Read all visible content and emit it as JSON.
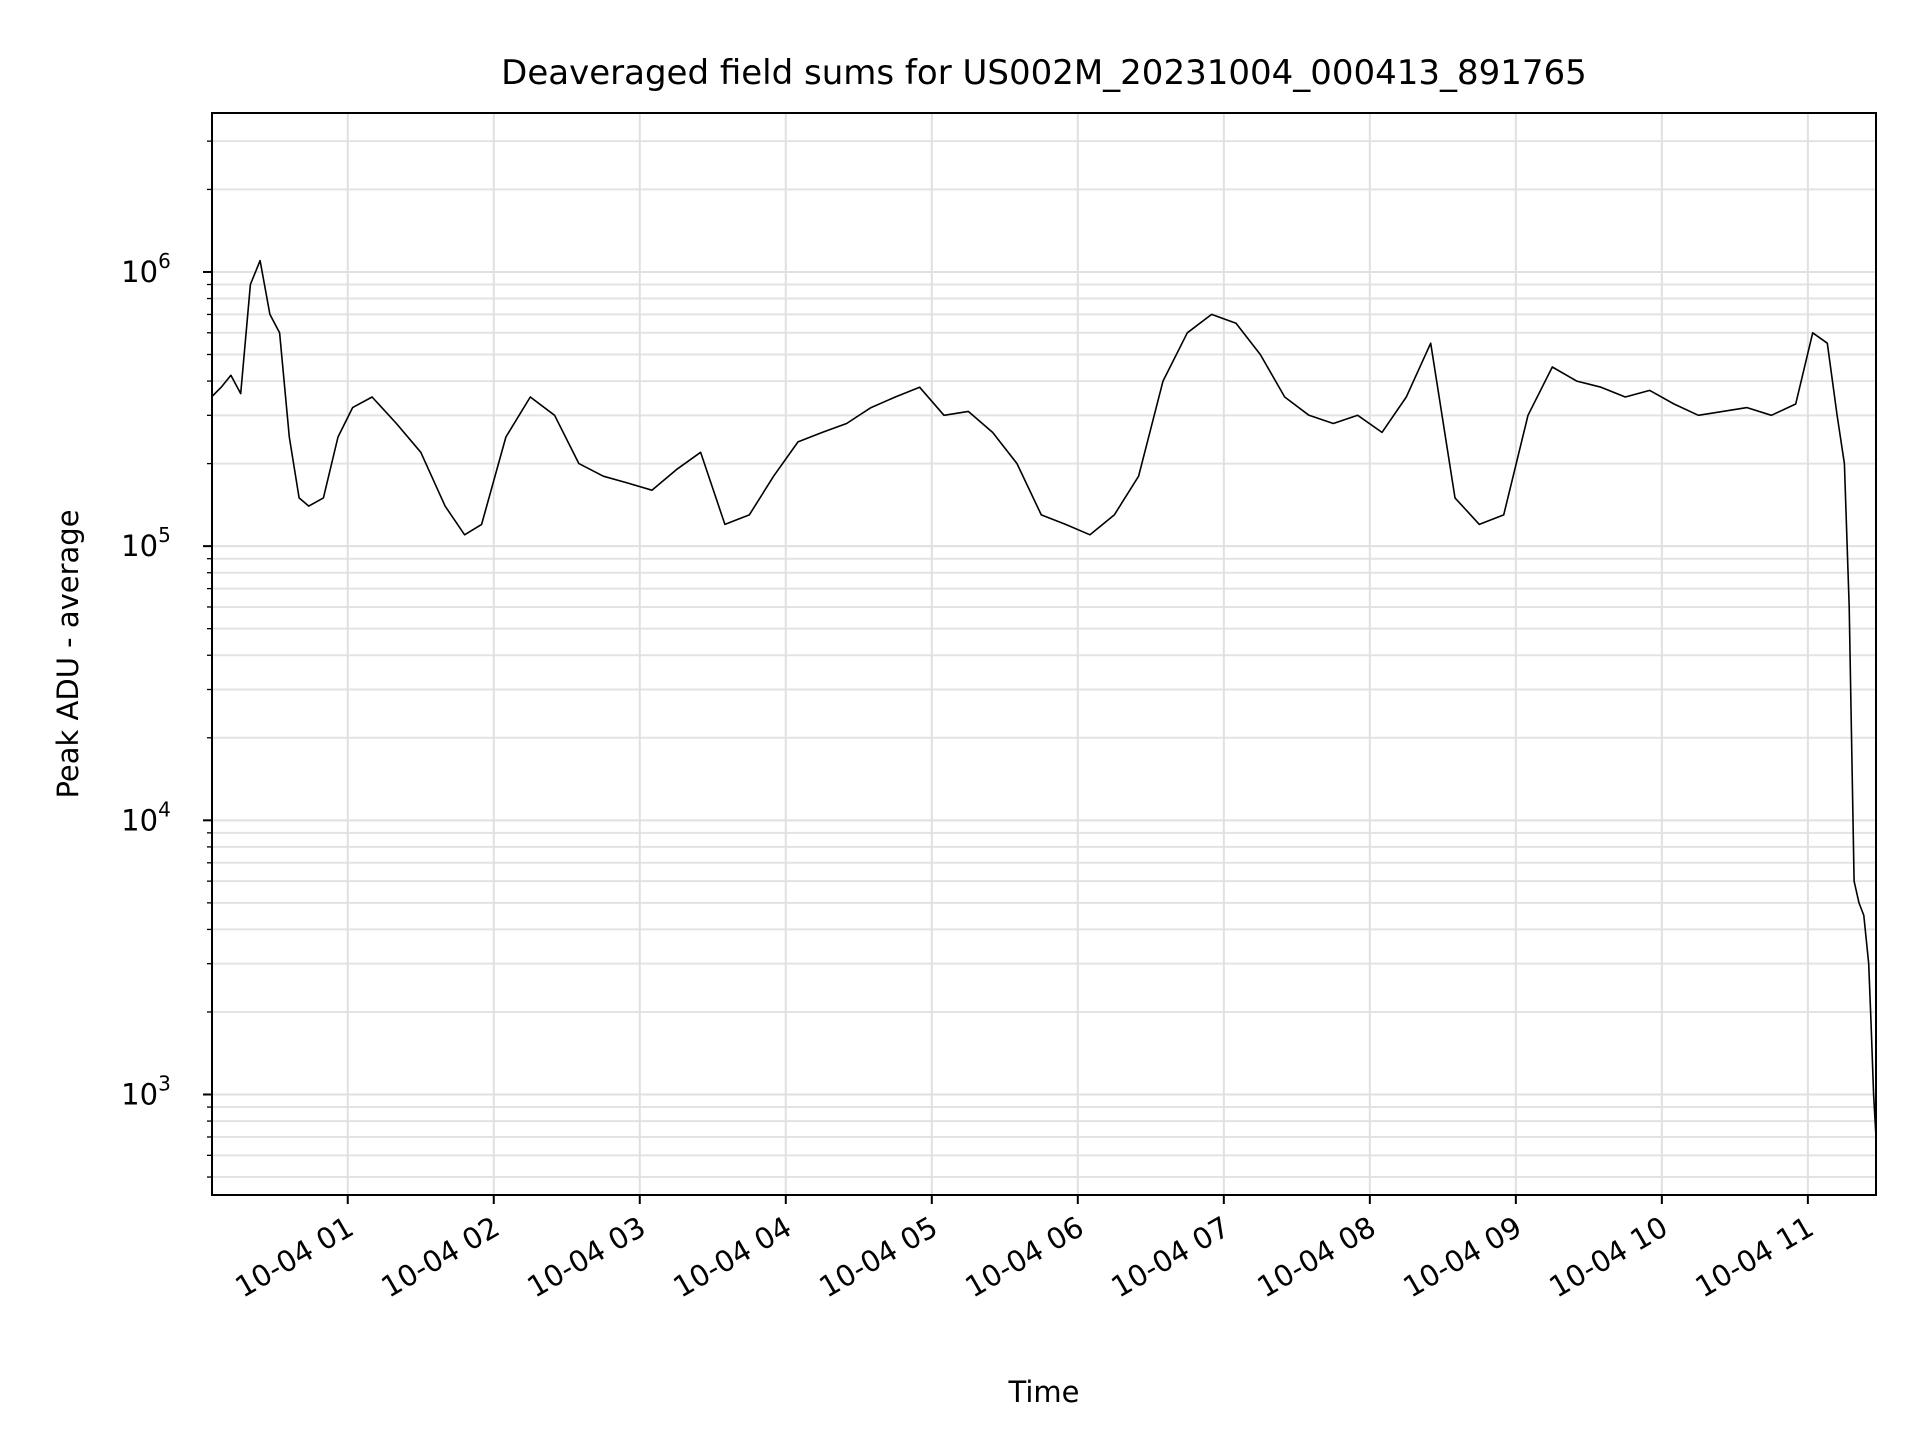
{
  "chart_data": {
    "type": "line",
    "title": "Deaveraged field sums for US002M_20231004_000413_891765",
    "xlabel": "Time",
    "ylabel": "Peak ADU - average",
    "yscale": "log",
    "ylim": [
      430,
      3800000
    ],
    "xlim": [
      "2023-10-04 00:04:13",
      "2023-10-04 11:28"
    ],
    "grid": true,
    "x_ticks": [
      "10-04 01",
      "10-04 02",
      "10-04 03",
      "10-04 04",
      "10-04 05",
      "10-04 06",
      "10-04 07",
      "10-04 08",
      "10-04 09",
      "10-04 10",
      "10-04 11"
    ],
    "y_ticks": [
      {
        "base": "10",
        "exp": "3"
      },
      {
        "base": "10",
        "exp": "4"
      },
      {
        "base": "10",
        "exp": "5"
      },
      {
        "base": "10",
        "exp": "6"
      }
    ],
    "line_color": "#000000",
    "series": [
      {
        "x": [
          "00:04",
          "00:08",
          "00:12",
          "00:16",
          "00:20",
          "00:24",
          "00:28",
          "00:32",
          "00:36",
          "00:40",
          "00:44",
          "00:50",
          "00:56",
          "01:02",
          "01:10",
          "01:20",
          "01:30",
          "01:40",
          "01:48",
          "01:55",
          "02:05",
          "02:15",
          "02:25",
          "02:35",
          "02:45",
          "02:55",
          "03:05",
          "03:15",
          "03:25",
          "03:35",
          "03:45",
          "03:55",
          "04:05",
          "04:15",
          "04:25",
          "04:35",
          "04:45",
          "04:55",
          "05:05",
          "05:15",
          "05:25",
          "05:35",
          "05:45",
          "05:55",
          "06:05",
          "06:15",
          "06:25",
          "06:35",
          "06:45",
          "06:55",
          "07:05",
          "07:15",
          "07:25",
          "07:35",
          "07:45",
          "07:55",
          "08:05",
          "08:15",
          "08:25",
          "08:35",
          "08:45",
          "08:55",
          "09:05",
          "09:15",
          "09:25",
          "09:35",
          "09:45",
          "09:55",
          "10:05",
          "10:15",
          "10:25",
          "10:35",
          "10:45",
          "10:55",
          "11:02",
          "11:08",
          "11:12",
          "11:15",
          "11:17",
          "11:19",
          "11:21",
          "11:23",
          "11:25",
          "11:26",
          "11:27",
          "11:28"
        ],
        "values": [
          350000,
          380000,
          420000,
          360000,
          900000,
          1100000,
          700000,
          600000,
          250000,
          150000,
          140000,
          150000,
          250000,
          320000,
          350000,
          280000,
          220000,
          140000,
          110000,
          120000,
          250000,
          350000,
          300000,
          200000,
          180000,
          170000,
          160000,
          190000,
          220000,
          120000,
          130000,
          180000,
          240000,
          260000,
          280000,
          320000,
          350000,
          380000,
          300000,
          310000,
          260000,
          200000,
          130000,
          120000,
          110000,
          130000,
          180000,
          400000,
          600000,
          700000,
          650000,
          500000,
          350000,
          300000,
          280000,
          300000,
          260000,
          350000,
          550000,
          150000,
          120000,
          130000,
          300000,
          450000,
          400000,
          380000,
          350000,
          370000,
          330000,
          300000,
          310000,
          320000,
          300000,
          330000,
          600000,
          550000,
          300000,
          200000,
          60000,
          6000,
          5000,
          4500,
          3000,
          1800,
          1000,
          700
        ]
      }
    ]
  }
}
